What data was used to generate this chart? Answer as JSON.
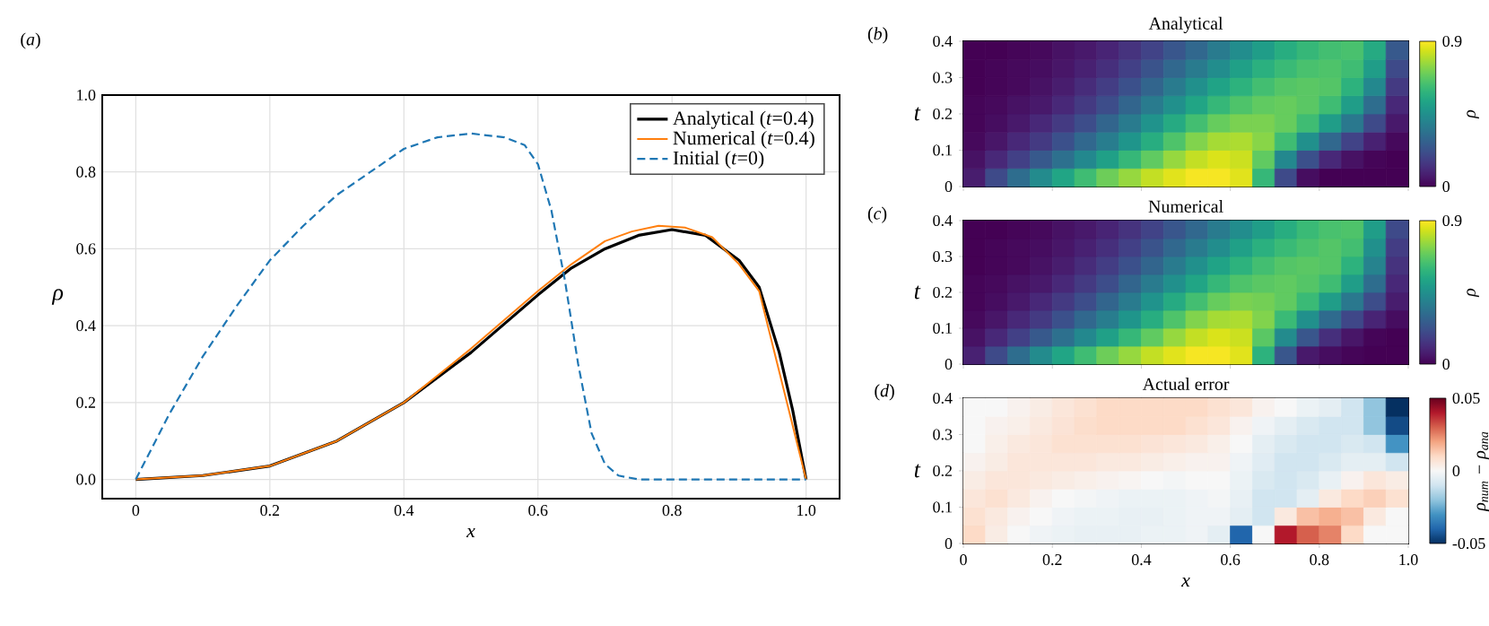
{
  "chart_data": [
    {
      "type": "line",
      "annotations": [
        "(*a*)"
      ],
      "xlabel": "x",
      "ylabel": "ρ",
      "xlim": [
        -0.05,
        1.05
      ],
      "ylim": [
        -0.05,
        1.0
      ],
      "xticks": [
        0,
        0.2,
        0.4,
        0.6,
        0.8,
        {
          "value": 1,
          "label": "1.0"
        }
      ],
      "yticks": [
        {
          "value": 0,
          "label": "0.0"
        },
        0.2,
        0.4,
        0.6,
        0.8,
        {
          "value": 1,
          "label": "1.0"
        }
      ],
      "grid": true,
      "legend": "top right",
      "series": [
        {
          "name": "Analytical  (*t*=0.4)",
          "color": "#000000",
          "x": [
            0,
            0.1,
            0.2,
            0.3,
            0.4,
            0.5,
            0.6,
            0.65,
            0.7,
            0.75,
            0.8,
            0.85,
            0.9,
            0.93,
            0.96,
            0.98,
            1.0
          ],
          "values": [
            0,
            0.01,
            0.035,
            0.1,
            0.2,
            0.33,
            0.48,
            0.55,
            0.6,
            0.635,
            0.65,
            0.635,
            0.57,
            0.5,
            0.33,
            0.18,
            0
          ]
        },
        {
          "name": "Numerical  (*t*=0.4)",
          "color": "#ff7f0e",
          "x": [
            0,
            0.1,
            0.2,
            0.3,
            0.4,
            0.5,
            0.6,
            0.65,
            0.7,
            0.74,
            0.78,
            0.82,
            0.86,
            0.9,
            0.93,
            1.0
          ],
          "values": [
            0,
            0.01,
            0.035,
            0.1,
            0.2,
            0.34,
            0.49,
            0.56,
            0.62,
            0.645,
            0.66,
            0.655,
            0.63,
            0.56,
            0.49,
            0
          ]
        },
        {
          "name": "Initial  (*t*=0)",
          "color": "#1f77b4",
          "line_style": "dashed",
          "x": [
            0,
            0.05,
            0.1,
            0.15,
            0.2,
            0.25,
            0.3,
            0.35,
            0.4,
            0.45,
            0.5,
            0.55,
            0.58,
            0.6,
            0.62,
            0.64,
            0.66,
            0.68,
            0.7,
            0.72,
            0.75,
            1.0
          ],
          "values": [
            0,
            0.17,
            0.32,
            0.45,
            0.57,
            0.66,
            0.74,
            0.8,
            0.86,
            0.89,
            0.9,
            0.89,
            0.87,
            0.82,
            0.7,
            0.52,
            0.3,
            0.12,
            0.04,
            0.01,
            0,
            0
          ]
        }
      ]
    },
    {
      "type": "heatmap",
      "title": "Analytical",
      "annotations": [
        "(*b*)"
      ],
      "ylabel": "t",
      "clabel": "ρ",
      "xlim": [
        0,
        1
      ],
      "ylim": [
        0,
        0.4
      ],
      "xticks": [
        0,
        0.2,
        0.4,
        0.6,
        0.8,
        1
      ],
      "yticks": [
        0,
        0.1,
        0.2,
        0.3,
        0.4
      ],
      "tick_labels": "y",
      "clim": [
        0,
        0.9
      ],
      "cticks": [
        0,
        0.9
      ],
      "cells": [
        [
          0,
          0,
          0.01,
          0.02,
          0.04,
          0.06,
          0.09,
          0.13,
          0.18,
          0.24,
          0.3,
          0.37,
          0.44,
          0.5,
          0.56,
          0.6,
          0.63,
          0.64,
          0.55,
          0.25
        ],
        [
          0,
          0.01,
          0.02,
          0.03,
          0.05,
          0.08,
          0.12,
          0.17,
          0.23,
          0.3,
          0.37,
          0.44,
          0.51,
          0.57,
          0.61,
          0.64,
          0.65,
          0.62,
          0.5,
          0.2
        ],
        [
          0,
          0.01,
          0.02,
          0.04,
          0.07,
          0.11,
          0.16,
          0.22,
          0.29,
          0.37,
          0.45,
          0.52,
          0.58,
          0.63,
          0.66,
          0.67,
          0.66,
          0.58,
          0.42,
          0.15
        ],
        [
          0.01,
          0.02,
          0.04,
          0.06,
          0.1,
          0.15,
          0.21,
          0.29,
          0.37,
          0.45,
          0.53,
          0.6,
          0.65,
          0.68,
          0.69,
          0.67,
          0.62,
          0.5,
          0.32,
          0.1
        ],
        [
          0.01,
          0.03,
          0.06,
          0.1,
          0.15,
          0.21,
          0.29,
          0.37,
          0.46,
          0.55,
          0.63,
          0.69,
          0.72,
          0.72,
          0.69,
          0.62,
          0.5,
          0.36,
          0.2,
          0.06
        ],
        [
          0.02,
          0.05,
          0.1,
          0.15,
          0.22,
          0.3,
          0.38,
          0.47,
          0.56,
          0.65,
          0.73,
          0.78,
          0.79,
          0.74,
          0.62,
          0.45,
          0.3,
          0.18,
          0.08,
          0.02
        ],
        [
          0.04,
          0.1,
          0.17,
          0.25,
          0.33,
          0.42,
          0.51,
          0.6,
          0.68,
          0.76,
          0.82,
          0.85,
          0.83,
          0.68,
          0.42,
          0.22,
          0.1,
          0.04,
          0.01,
          0
        ],
        [
          0.07,
          0.2,
          0.32,
          0.43,
          0.53,
          0.62,
          0.7,
          0.76,
          0.82,
          0.86,
          0.89,
          0.89,
          0.86,
          0.6,
          0.2,
          0.03,
          0,
          0,
          0,
          0
        ]
      ]
    },
    {
      "type": "heatmap",
      "title": "Numerical",
      "annotations": [
        "(*c*)"
      ],
      "ylabel": "t",
      "clabel": "ρ",
      "xlim": [
        0,
        1
      ],
      "ylim": [
        0,
        0.4
      ],
      "xticks": [
        0,
        0.2,
        0.4,
        0.6,
        0.8,
        1
      ],
      "yticks": [
        0,
        0.1,
        0.2,
        0.3,
        0.4
      ],
      "tick_labels": "y",
      "clim": [
        0,
        0.9
      ],
      "cticks": [
        0,
        0.9
      ],
      "cells": [
        [
          0,
          0,
          0.01,
          0.02,
          0.04,
          0.06,
          0.09,
          0.13,
          0.18,
          0.24,
          0.3,
          0.37,
          0.44,
          0.5,
          0.56,
          0.61,
          0.64,
          0.65,
          0.5,
          0.2
        ],
        [
          0,
          0.01,
          0.02,
          0.03,
          0.05,
          0.08,
          0.12,
          0.17,
          0.23,
          0.3,
          0.37,
          0.44,
          0.51,
          0.57,
          0.61,
          0.64,
          0.66,
          0.63,
          0.45,
          0.16
        ],
        [
          0,
          0.01,
          0.02,
          0.04,
          0.07,
          0.11,
          0.16,
          0.22,
          0.29,
          0.37,
          0.45,
          0.52,
          0.58,
          0.63,
          0.66,
          0.67,
          0.66,
          0.58,
          0.4,
          0.13
        ],
        [
          0.01,
          0.02,
          0.04,
          0.06,
          0.1,
          0.15,
          0.21,
          0.29,
          0.37,
          0.45,
          0.53,
          0.6,
          0.65,
          0.67,
          0.68,
          0.66,
          0.62,
          0.5,
          0.32,
          0.1
        ],
        [
          0.01,
          0.03,
          0.06,
          0.1,
          0.15,
          0.21,
          0.29,
          0.37,
          0.46,
          0.55,
          0.63,
          0.69,
          0.72,
          0.71,
          0.68,
          0.61,
          0.5,
          0.36,
          0.21,
          0.07
        ],
        [
          0.02,
          0.05,
          0.1,
          0.15,
          0.22,
          0.3,
          0.38,
          0.47,
          0.56,
          0.65,
          0.73,
          0.78,
          0.79,
          0.73,
          0.61,
          0.45,
          0.31,
          0.19,
          0.09,
          0.03
        ],
        [
          0.04,
          0.1,
          0.17,
          0.25,
          0.33,
          0.42,
          0.51,
          0.6,
          0.68,
          0.76,
          0.82,
          0.85,
          0.83,
          0.67,
          0.43,
          0.24,
          0.12,
          0.05,
          0.01,
          0
        ],
        [
          0.08,
          0.2,
          0.32,
          0.43,
          0.53,
          0.62,
          0.7,
          0.76,
          0.82,
          0.86,
          0.89,
          0.89,
          0.86,
          0.58,
          0.24,
          0.06,
          0.03,
          0.01,
          0,
          0
        ]
      ]
    },
    {
      "type": "heatmap",
      "title": "Actual error",
      "annotations": [
        "(*d*)"
      ],
      "xlabel": "x",
      "ylabel": "t",
      "clabel": "ρ$_{num}$ − ρ$_{ana}$",
      "xlim": [
        0,
        1
      ],
      "ylim": [
        0,
        0.4
      ],
      "xticks": [
        0,
        0.2,
        0.4,
        0.6,
        0.8,
        {
          "value": 1,
          "label": "1.0"
        }
      ],
      "yticks": [
        0,
        0.1,
        0.2,
        0.3,
        0.4
      ],
      "clim": [
        -0.05,
        0.05
      ],
      "cticks": [
        -0.05,
        0,
        0.05
      ],
      "cells": [
        [
          0,
          0,
          0.002,
          0.004,
          0.006,
          0.008,
          0.01,
          0.01,
          0.01,
          0.01,
          0.01,
          0.008,
          0.006,
          0.002,
          0,
          -0.003,
          -0.005,
          -0.01,
          -0.02,
          -0.05
        ],
        [
          0,
          0.002,
          0.003,
          0.005,
          0.007,
          0.009,
          0.01,
          0.01,
          0.01,
          0.01,
          0.008,
          0.006,
          0.002,
          -0.002,
          -0.005,
          -0.008,
          -0.01,
          -0.01,
          -0.02,
          -0.045
        ],
        [
          0,
          0.003,
          0.005,
          0.006,
          0.008,
          0.008,
          0.008,
          0.008,
          0.007,
          0.006,
          0.005,
          0.003,
          0,
          -0.005,
          -0.008,
          -0.01,
          -0.01,
          -0.008,
          -0.01,
          -0.03
        ],
        [
          0.002,
          0.004,
          0.006,
          0.006,
          0.006,
          0.006,
          0.005,
          0.005,
          0.004,
          0.003,
          0.002,
          0.002,
          -0.002,
          -0.006,
          -0.01,
          -0.01,
          -0.008,
          -0.005,
          -0.005,
          -0.01
        ],
        [
          0.004,
          0.006,
          0.006,
          0.005,
          0.004,
          0.003,
          0.002,
          0.001,
          0,
          -0.001,
          0,
          0,
          -0.003,
          -0.008,
          -0.01,
          -0.008,
          -0.004,
          0.002,
          0.006,
          0.004
        ],
        [
          0.006,
          0.008,
          0.005,
          0.002,
          0,
          -0.001,
          -0.002,
          -0.003,
          -0.003,
          -0.003,
          -0.002,
          -0.001,
          -0.004,
          -0.01,
          -0.01,
          -0.005,
          0.005,
          0.01,
          0.012,
          0.008
        ],
        [
          0.008,
          0.005,
          0.002,
          0,
          -0.002,
          -0.003,
          -0.003,
          -0.004,
          -0.004,
          -0.003,
          -0.002,
          -0.002,
          -0.005,
          -0.01,
          0.005,
          0.015,
          0.018,
          0.015,
          0.005,
          0
        ],
        [
          0.01,
          0.004,
          0,
          -0.002,
          -0.003,
          -0.004,
          -0.004,
          -0.004,
          -0.003,
          -0.003,
          -0.002,
          -0.005,
          -0.04,
          0,
          0.04,
          0.03,
          0.025,
          0.01,
          0,
          0
        ]
      ]
    }
  ]
}
